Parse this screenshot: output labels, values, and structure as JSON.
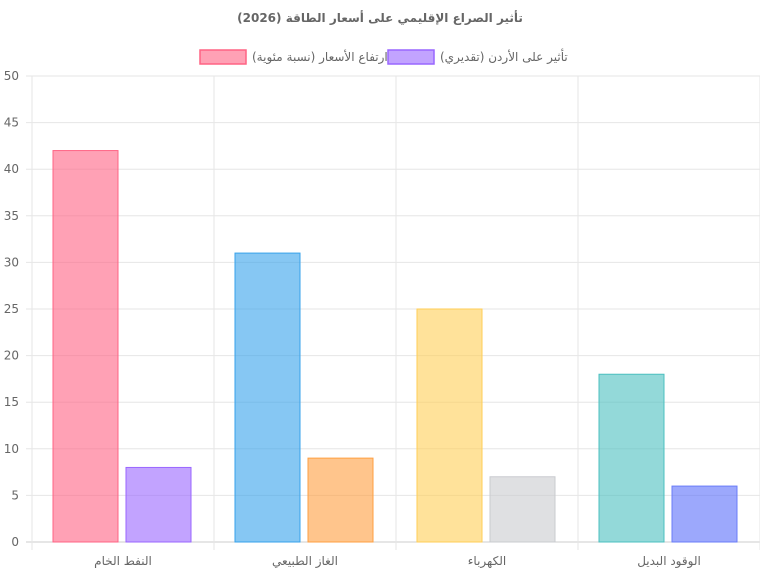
{
  "chart_data": {
    "type": "bar",
    "title": "تأثير الصراع الإقليمي على أسعار الطاقة (2026)",
    "categories": [
      "النفط الخام",
      "الغاز الطبيعي",
      "الكهرباء",
      "الوقود البديل"
    ],
    "series": [
      {
        "name": "ارتفاع الأسعار (نسبة مئوية)",
        "values": [
          42,
          31,
          25,
          18
        ],
        "legend_color": "rgba(255,99,132,0.6)",
        "legend_border": "#ff6384",
        "colors": [
          "rgba(255,99,132,0.6)",
          "rgba(54,162,235,0.6)",
          "rgba(255,206,86,0.6)",
          "rgba(75,192,192,0.6)"
        ],
        "borders": [
          "#ff6384",
          "#36a2eb",
          "#ffce56",
          "#4bc0c0"
        ]
      },
      {
        "name": "تأثير على الأردن (تقديري)",
        "values": [
          8,
          9,
          7,
          6
        ],
        "legend_color": "rgba(153,102,255,0.6)",
        "legend_border": "#9966ff",
        "colors": [
          "rgba(153,102,255,0.6)",
          "rgba(255,159,64,0.6)",
          "rgba(201,203,207,0.6)",
          "rgba(90,110,250,0.6)"
        ],
        "borders": [
          "#9966ff",
          "#ff9f40",
          "#c9cbcf",
          "#6a7cf8"
        ]
      }
    ],
    "yticks": [
      "0",
      "5",
      "10",
      "15",
      "20",
      "25",
      "30",
      "35",
      "40",
      "45",
      "50"
    ],
    "ylim": [
      0,
      50
    ],
    "grid": true,
    "legend_position": "top"
  }
}
